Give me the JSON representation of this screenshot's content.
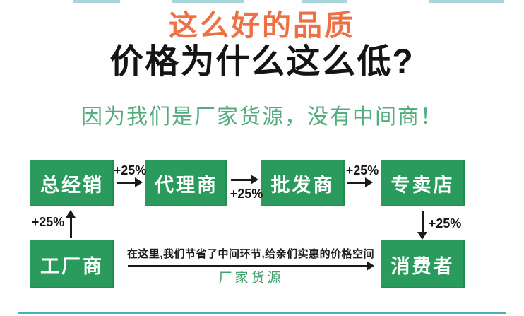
{
  "header": {
    "line1": "这么好的品质",
    "line2": "价格为什么这么低?",
    "subtitle": "因为我们是厂家货源，没有中间商！"
  },
  "diagram": {
    "increment": "+25%",
    "nodes": {
      "general_distributor": "总经销",
      "agent": "代理商",
      "wholesaler": "批发商",
      "retail_store": "专卖店",
      "factory": "工厂商",
      "consumer": "消费者"
    },
    "note": "在这里,我们节省了中间环节,给亲们实惠的价格空间",
    "caption": "厂家货源"
  },
  "colors": {
    "node_green": "#2a9b5d",
    "subtitle_green": "#54ad7e",
    "caption_green": "#43a06f",
    "title_orange": "#ed7144",
    "arrow_black": "#1a1a1a",
    "accent_teal": "#47b1b7"
  }
}
